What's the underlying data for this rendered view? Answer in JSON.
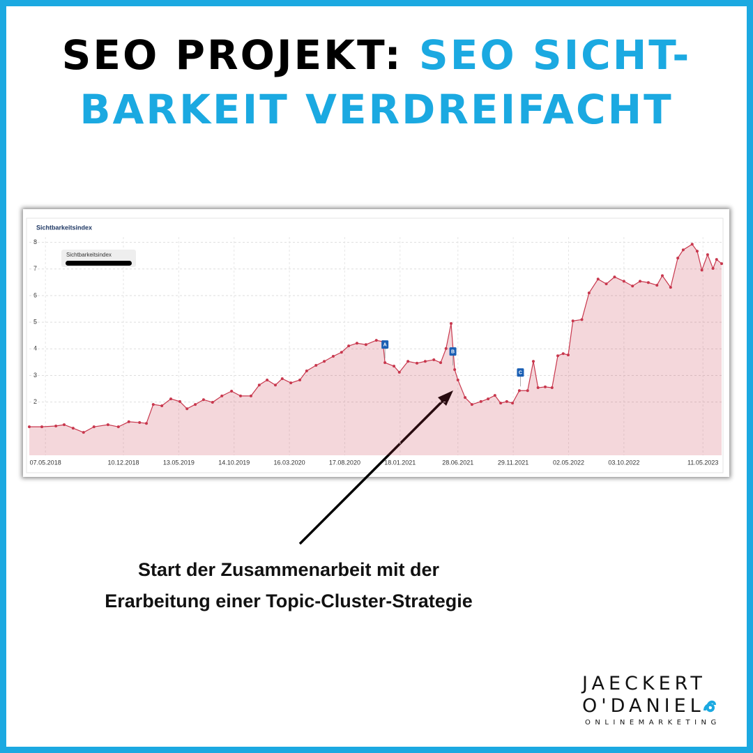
{
  "header": {
    "title_black": "SEO PROJEKT:",
    "title_blue_1": "SEO SICHT-",
    "title_blue_2": "BARKEIT VERDREIFACHT"
  },
  "chart_data": {
    "type": "area",
    "title": "Sichtbarkeitsindex",
    "legend": "top-left",
    "grid": true,
    "x": [
      "23.03.2018",
      "27.04.2018",
      "05.06.2018",
      "28.06.2018",
      "23.07.2018",
      "21.08.2018",
      "19.09.2018",
      "28.10.2018",
      "26.11.2018",
      "25.12.2018",
      "24.01.2019",
      "12.02.2019",
      "03.03.2019",
      "27.03.2019",
      "21.04.2019",
      "16.05.2019",
      "05.06.2019",
      "28.06.2019",
      "21.07.2019",
      "15.08.2019",
      "10.09.2019",
      "07.10.2019",
      "01.11.2019",
      "30.11.2019",
      "23.12.2019",
      "14.01.2020",
      "06.02.2020",
      "25.02.2020",
      "20.03.2020",
      "14.04.2020",
      "03.05.2020",
      "29.05.2020",
      "21.06.2020",
      "16.07.2020",
      "08.08.2020",
      "28.08.2020",
      "20.09.2020",
      "15.10.2020",
      "13.11.2020",
      "01.12.2020",
      "07.12.2020",
      "01.01.2021",
      "16.01.2021",
      "09.02.2021",
      "06.03.2021",
      "29.03.2021",
      "22.04.2021",
      "11.05.2021",
      "26.05.2021",
      "09.06.2021",
      "19.06.2021",
      "28.06.2021",
      "18.07.2021",
      "06.08.2021",
      "31.08.2021",
      "20.09.2021",
      "09.10.2021",
      "25.10.2021",
      "11.11.2021",
      "27.11.2021",
      "16.12.2021",
      "08.01.2022",
      "24.01.2022",
      "06.02.2022",
      "26.02.2022",
      "17.03.2022",
      "02.04.2022",
      "17.04.2022",
      "01.05.2022",
      "14.05.2022",
      "08.06.2022",
      "28.06.2022",
      "23.07.2022",
      "15.08.2022",
      "07.09.2022",
      "03.10.2022",
      "27.10.2022",
      "17.11.2022",
      "10.12.2022",
      "03.01.2023",
      "18.01.2023",
      "10.02.2023",
      "02.03.2023",
      "17.03.2023",
      "11.04.2023",
      "25.04.2023",
      "08.05.2023",
      "24.05.2023",
      "08.06.2023",
      "18.06.2023",
      "02.07.2023"
    ],
    "series": [
      {
        "name": "Sichtbarkeitsindex",
        "color": "#c8374d",
        "values": [
          1.07,
          1.07,
          1.1,
          1.15,
          1.02,
          0.86,
          1.07,
          1.15,
          1.07,
          1.26,
          1.23,
          1.2,
          1.91,
          1.86,
          2.12,
          2.02,
          1.75,
          1.91,
          2.09,
          1.99,
          2.23,
          2.41,
          2.23,
          2.23,
          2.64,
          2.83,
          2.64,
          2.88,
          2.72,
          2.83,
          3.17,
          3.38,
          3.53,
          3.72,
          3.87,
          4.11,
          4.21,
          4.16,
          4.32,
          4.27,
          3.48,
          3.35,
          3.12,
          3.53,
          3.46,
          3.53,
          3.59,
          3.48,
          4.01,
          4.95,
          3.22,
          2.83,
          2.17,
          1.91,
          2.02,
          2.12,
          2.25,
          1.96,
          2.02,
          1.96,
          2.43,
          2.43,
          3.53,
          2.54,
          2.57,
          2.54,
          3.74,
          3.82,
          3.77,
          5.05,
          5.1,
          6.1,
          6.62,
          6.44,
          6.7,
          6.54,
          6.36,
          6.54,
          6.49,
          6.39,
          6.75,
          6.31,
          7.41,
          7.72,
          7.93,
          7.67,
          6.96,
          7.54,
          7.02,
          7.36,
          7.2
        ]
      }
    ],
    "xlim": [
      "23.03.2018",
      "02.07.2023"
    ],
    "xticks": [
      "07.05.2018",
      "10.12.2018",
      "13.05.2019",
      "14.10.2019",
      "16.03.2020",
      "17.08.2020",
      "18.01.2021",
      "28.06.2021",
      "29.11.2021",
      "02.05.2022",
      "03.10.2022",
      "11.05.2023"
    ],
    "ylim": [
      0,
      8.2
    ],
    "yticks": [
      2,
      3,
      4,
      5,
      6,
      7,
      8
    ],
    "annotations": [
      {
        "label": "A",
        "x": "07.12.2020"
      },
      {
        "label": "B",
        "x": "14.06.2021"
      },
      {
        "label": "C",
        "x": "19.12.2021"
      }
    ]
  },
  "annotation": {
    "line1": "Start der Zusammenarbeit mit der",
    "line2": "Erarbeitung einer Topic-Cluster-Strategie"
  },
  "logo": {
    "line1": "JAECKERT",
    "line2": "O'DANIEL",
    "line3": "ONLINEMARKETING"
  }
}
